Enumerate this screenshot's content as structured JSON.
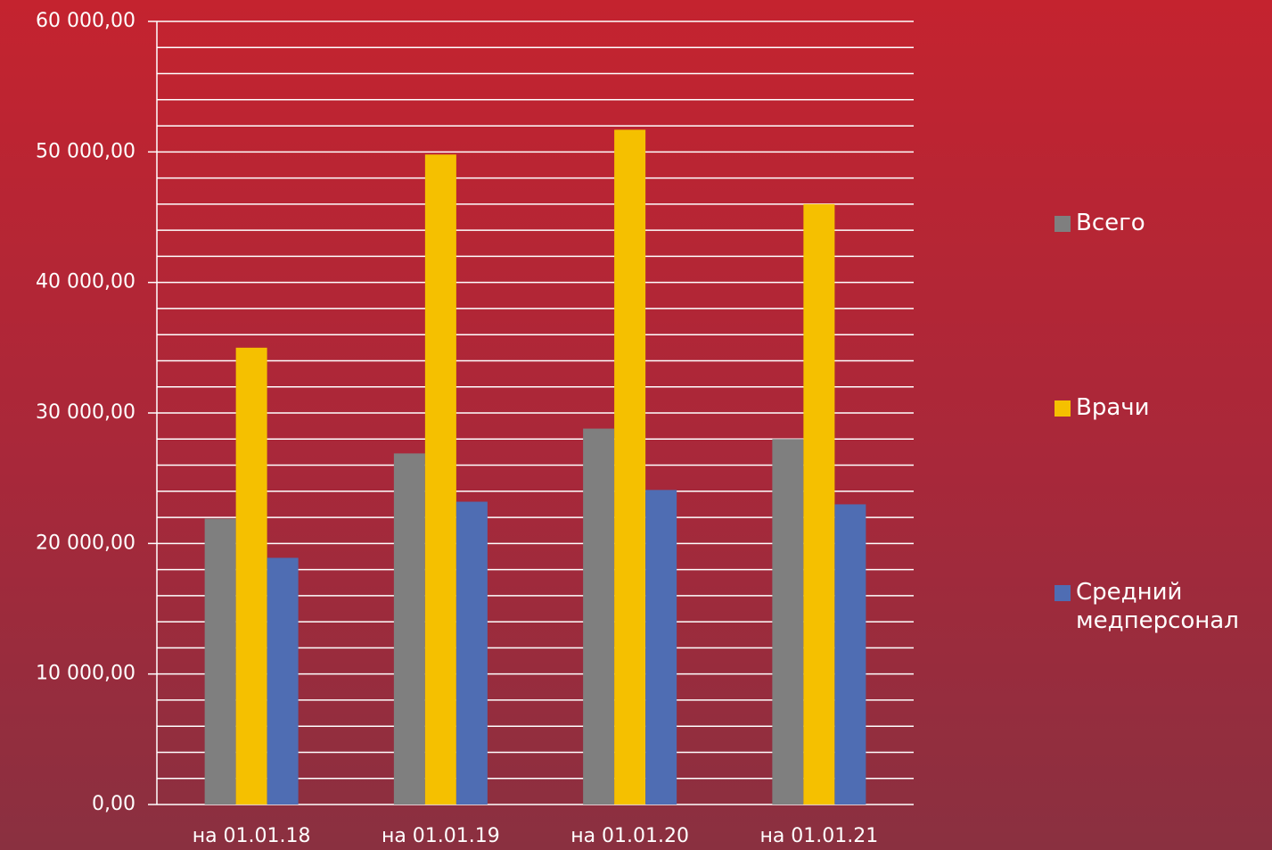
{
  "chart_data": {
    "type": "bar",
    "categories": [
      "на 01.01.18",
      "на 01.01.19",
      "на 01.01.20",
      "на 01.01.21"
    ],
    "series": [
      {
        "name": "Всего",
        "color": "#7f7f7f",
        "values": [
          21900,
          26900,
          28800,
          28000
        ]
      },
      {
        "name": "Врачи",
        "color": "#f5c000",
        "values": [
          35000,
          49800,
          51700,
          46000
        ]
      },
      {
        "name": "Средний медперсонал",
        "color": "#4f6db3",
        "values": [
          18900,
          23200,
          24100,
          23000
        ]
      }
    ],
    "ylim": [
      0,
      60000
    ],
    "yticks": [
      {
        "value": 0,
        "label": "0,00"
      },
      {
        "value": 10000,
        "label": "10 000,00"
      },
      {
        "value": 20000,
        "label": "20 000,00"
      },
      {
        "value": 30000,
        "label": "30 000,00"
      },
      {
        "value": 40000,
        "label": "40 000,00"
      },
      {
        "value": 50000,
        "label": "50 000,00"
      },
      {
        "value": 60000,
        "label": "60 000,00"
      }
    ],
    "minor_yticks": [
      2000,
      4000,
      6000,
      8000,
      12000,
      14000,
      16000,
      18000,
      22000,
      24000,
      26000,
      28000,
      32000,
      34000,
      36000,
      38000,
      42000,
      44000,
      46000,
      48000,
      52000,
      54000,
      56000,
      58000
    ],
    "grid": true,
    "legend": "right"
  }
}
